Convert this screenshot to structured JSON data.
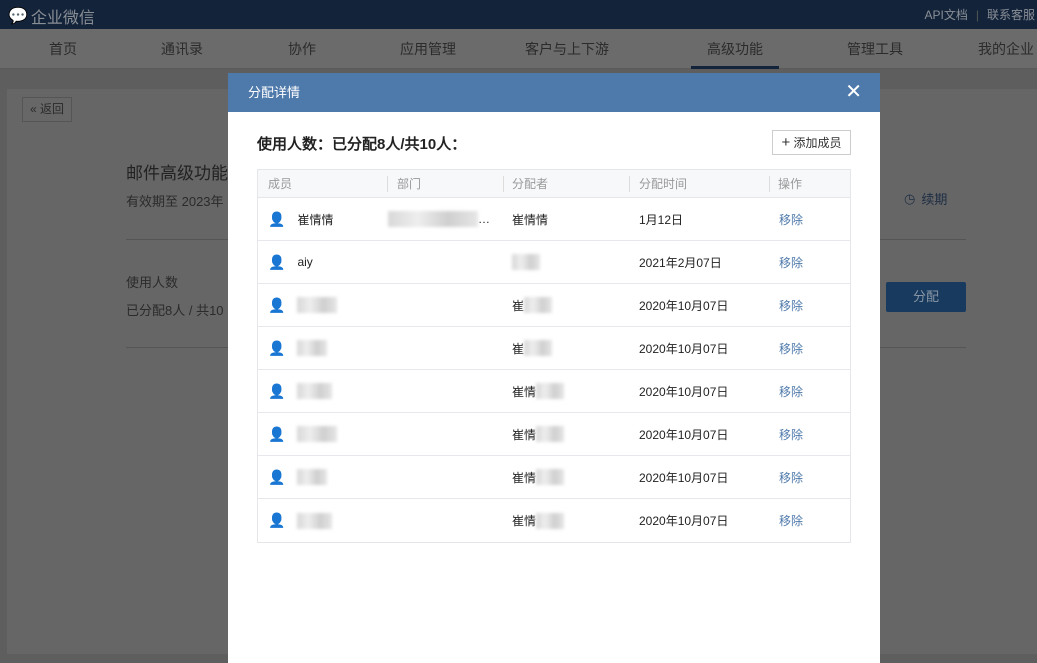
{
  "topbar": {
    "logo": "企业微信",
    "links": [
      "API文档",
      "|",
      "联系客服"
    ]
  },
  "nav": {
    "items": [
      {
        "label": "首页"
      },
      {
        "label": "通讯录"
      },
      {
        "label": "协作"
      },
      {
        "label": "应用管理"
      },
      {
        "label": "客户与上下游"
      },
      {
        "label": "高级功能",
        "active": true
      },
      {
        "label": "管理工具"
      },
      {
        "label": "我的企业"
      }
    ]
  },
  "page": {
    "back": "返回",
    "feature_title": "邮件高级功能",
    "validity": "有效期至 2023年",
    "renew": "续期",
    "users_label": "使用人数",
    "users_value": "已分配8人 / 共10",
    "assign_button": "分配"
  },
  "modal": {
    "title": "分配详情",
    "summary": "使用人数：已分配8人/共10人：",
    "add_member": "添加成员",
    "columns": [
      "成员",
      "部门",
      "分配者",
      "分配时间",
      "操作"
    ],
    "rows": [
      {
        "member": "崔情情",
        "dept": "…",
        "assigner": "崔情情",
        "time": "1月12日",
        "action": "移除"
      },
      {
        "member": "aiy",
        "dept": "",
        "assigner": "",
        "time": "2021年2月07日",
        "action": "移除"
      },
      {
        "member": "",
        "dept": "",
        "assigner": "崔",
        "time": "2020年10月07日",
        "action": "移除"
      },
      {
        "member": "",
        "dept": "",
        "assigner": "崔",
        "time": "2020年10月07日",
        "action": "移除"
      },
      {
        "member": "",
        "dept": "",
        "assigner": "崔情",
        "time": "2020年10月07日",
        "action": "移除"
      },
      {
        "member": "",
        "dept": "",
        "assigner": "崔情",
        "time": "2020年10月07日",
        "action": "移除"
      },
      {
        "member": "",
        "dept": "",
        "assigner": "崔情",
        "time": "2020年10月07日",
        "action": "移除"
      },
      {
        "member": "",
        "dept": "",
        "assigner": "崔情",
        "time": "2020年10月07日",
        "action": "移除"
      }
    ]
  },
  "colors": {
    "modal_header": "#4e79ab",
    "topbar": "#2e4a6b",
    "link": "#4e79ab"
  }
}
